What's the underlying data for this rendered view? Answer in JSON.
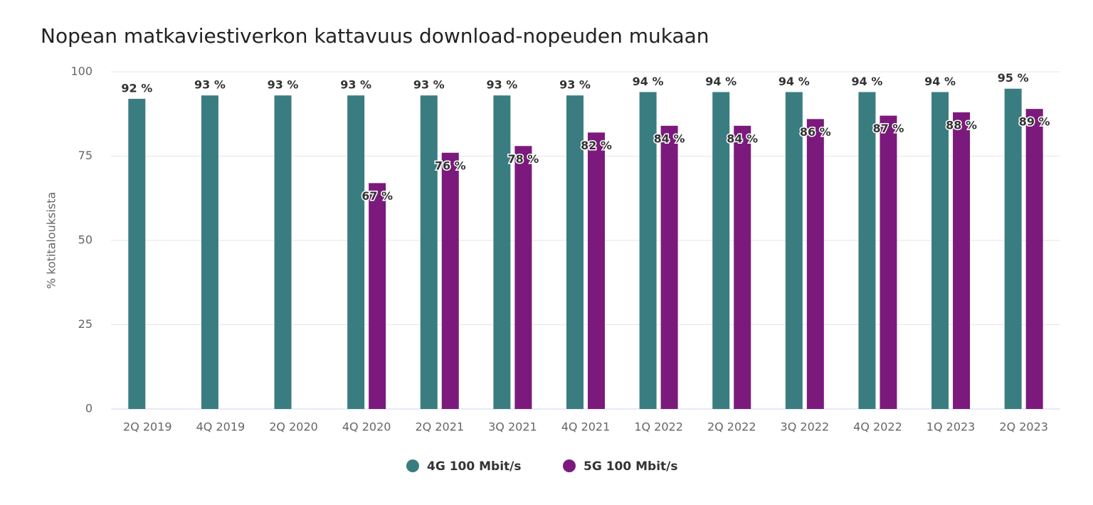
{
  "chart_data": {
    "type": "bar",
    "title": "Nopean matkaviestiverkon kattavuus download-nopeuden mukaan",
    "y_label": "% kotitalouksista",
    "categories": [
      "2Q 2019",
      "4Q 2019",
      "2Q 2020",
      "4Q 2020",
      "2Q 2021",
      "3Q 2021",
      "4Q 2021",
      "1Q 2022",
      "2Q 2022",
      "3Q 2022",
      "4Q 2022",
      "1Q 2023",
      "2Q 2023"
    ],
    "series": [
      {
        "name": "4G 100 Mbit/s",
        "color": "#3a7d80",
        "values": [
          92,
          93,
          93,
          93,
          93,
          93,
          93,
          94,
          94,
          94,
          94,
          94,
          95
        ],
        "value_labels": [
          "92 %",
          "93 %",
          "93 %",
          "93 %",
          "93 %",
          "93 %",
          "93 %",
          "94 %",
          "94 %",
          "94 %",
          "94 %",
          "94 %",
          "95 %"
        ]
      },
      {
        "name": "5G 100 Mbit/s",
        "color": "#7b1a7c",
        "values": [
          null,
          null,
          null,
          67,
          76,
          78,
          82,
          84,
          84,
          86,
          87,
          88,
          89
        ],
        "value_labels": [
          null,
          null,
          null,
          "67 %",
          "76 %",
          "78 %",
          "82 %",
          "84 %",
          "84 %",
          "86 %",
          "87 %",
          "88 %",
          "89 %"
        ]
      }
    ],
    "ylim": [
      0,
      100
    ],
    "yticks": [
      0,
      25,
      50,
      75,
      100
    ],
    "grid": true
  }
}
